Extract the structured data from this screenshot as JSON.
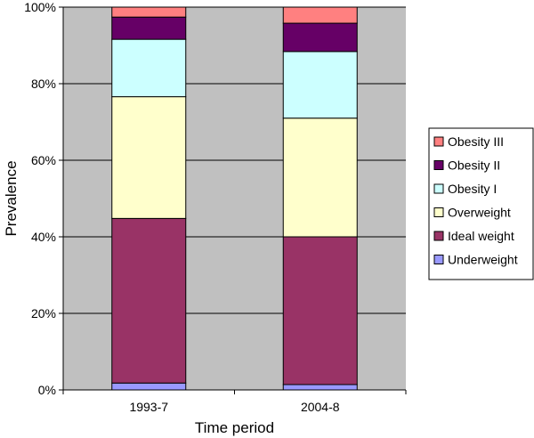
{
  "chart_data": {
    "type": "bar",
    "stacked": true,
    "percent": true,
    "categories": [
      "1993-7",
      "2004-8"
    ],
    "series": [
      {
        "name": "Underweight",
        "color": "#9999FF",
        "values": [
          1.8,
          1.4
        ]
      },
      {
        "name": "Ideal weight",
        "color": "#993366",
        "values": [
          43.0,
          38.6
        ]
      },
      {
        "name": "Overweight",
        "color": "#FFFFCC",
        "values": [
          31.8,
          31.0
        ]
      },
      {
        "name": "Obesity I",
        "color": "#CCFFFF",
        "values": [
          15.0,
          17.4
        ]
      },
      {
        "name": "Obesity II",
        "color": "#660066",
        "values": [
          5.8,
          7.4
        ]
      },
      {
        "name": "Obesity III",
        "color": "#FF8080",
        "values": [
          2.6,
          4.2
        ]
      }
    ],
    "xlabel": "Time period",
    "ylabel": "Prevalence",
    "ylim": [
      0,
      100
    ],
    "yticks": [
      "0%",
      "20%",
      "40%",
      "60%",
      "80%",
      "100%"
    ],
    "grid": true,
    "plot_background": "#C0C0C0",
    "legend_position": "right"
  }
}
